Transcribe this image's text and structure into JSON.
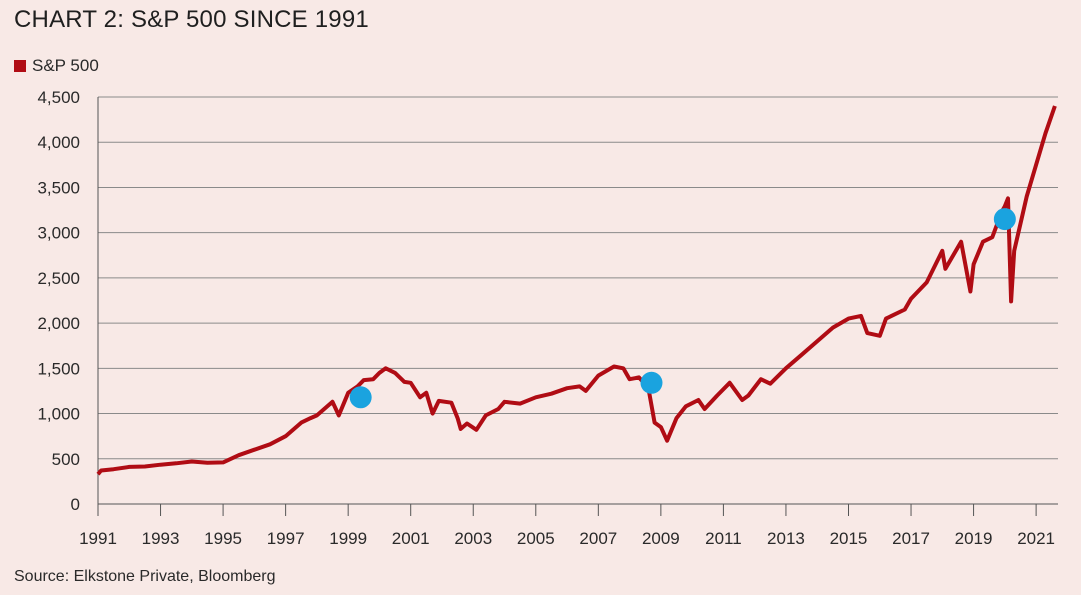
{
  "chart_data": {
    "type": "line",
    "title": "CHART 2: S&P 500 SINCE 1991",
    "legend": [
      {
        "label": "S&P 500",
        "color": "#b00c14"
      }
    ],
    "source": "Source: Elkstone Private, Bloomberg",
    "ylim": [
      0,
      4500
    ],
    "xlim": [
      1991,
      2021.7
    ],
    "y_ticks": [
      {
        "value": 0,
        "label": "0"
      },
      {
        "value": 500,
        "label": "500"
      },
      {
        "value": 1000,
        "label": "1,000"
      },
      {
        "value": 1500,
        "label": "1,500"
      },
      {
        "value": 2000,
        "label": "2,000"
      },
      {
        "value": 2500,
        "label": "2,500"
      },
      {
        "value": 3000,
        "label": "3,000"
      },
      {
        "value": 3500,
        "label": "3,500"
      },
      {
        "value": 4000,
        "label": "4,000"
      },
      {
        "value": 4500,
        "label": "4,500"
      }
    ],
    "x_ticks": [
      {
        "value": 1991,
        "label": "1991"
      },
      {
        "value": 1993,
        "label": "1993"
      },
      {
        "value": 1995,
        "label": "1995"
      },
      {
        "value": 1997,
        "label": "1997"
      },
      {
        "value": 1999,
        "label": "1999"
      },
      {
        "value": 2001,
        "label": "2001"
      },
      {
        "value": 2003,
        "label": "2003"
      },
      {
        "value": 2005,
        "label": "2005"
      },
      {
        "value": 2007,
        "label": "2007"
      },
      {
        "value": 2009,
        "label": "2009"
      },
      {
        "value": 2011,
        "label": "2011"
      },
      {
        "value": 2013,
        "label": "2013"
      },
      {
        "value": 2015,
        "label": "2015"
      },
      {
        "value": 2017,
        "label": "2017"
      },
      {
        "value": 2019,
        "label": "2019"
      },
      {
        "value": 2021,
        "label": "2021"
      }
    ],
    "series": [
      {
        "name": "S&P 500",
        "color": "#b00c14",
        "points": [
          [
            1991.0,
            330
          ],
          [
            1991.1,
            370
          ],
          [
            1991.5,
            385
          ],
          [
            1992.0,
            410
          ],
          [
            1992.5,
            415
          ],
          [
            1993.0,
            435
          ],
          [
            1993.5,
            450
          ],
          [
            1994.0,
            470
          ],
          [
            1994.5,
            455
          ],
          [
            1995.0,
            460
          ],
          [
            1995.5,
            540
          ],
          [
            1996.0,
            600
          ],
          [
            1996.5,
            660
          ],
          [
            1997.0,
            750
          ],
          [
            1997.5,
            900
          ],
          [
            1997.8,
            950
          ],
          [
            1998.0,
            980
          ],
          [
            1998.5,
            1130
          ],
          [
            1998.7,
            980
          ],
          [
            1999.0,
            1230
          ],
          [
            1999.3,
            1300
          ],
          [
            1999.5,
            1370
          ],
          [
            1999.8,
            1380
          ],
          [
            2000.0,
            1450
          ],
          [
            2000.2,
            1500
          ],
          [
            2000.5,
            1450
          ],
          [
            2000.8,
            1350
          ],
          [
            2001.0,
            1340
          ],
          [
            2001.3,
            1180
          ],
          [
            2001.5,
            1230
          ],
          [
            2001.7,
            1000
          ],
          [
            2001.9,
            1140
          ],
          [
            2002.3,
            1120
          ],
          [
            2002.5,
            950
          ],
          [
            2002.6,
            830
          ],
          [
            2002.8,
            890
          ],
          [
            2003.1,
            820
          ],
          [
            2003.4,
            980
          ],
          [
            2003.8,
            1050
          ],
          [
            2004.0,
            1130
          ],
          [
            2004.5,
            1110
          ],
          [
            2005.0,
            1180
          ],
          [
            2005.5,
            1220
          ],
          [
            2006.0,
            1280
          ],
          [
            2006.4,
            1300
          ],
          [
            2006.6,
            1250
          ],
          [
            2007.0,
            1420
          ],
          [
            2007.5,
            1520
          ],
          [
            2007.8,
            1500
          ],
          [
            2008.0,
            1380
          ],
          [
            2008.3,
            1400
          ],
          [
            2008.6,
            1280
          ],
          [
            2008.8,
            900
          ],
          [
            2009.0,
            850
          ],
          [
            2009.2,
            700
          ],
          [
            2009.5,
            950
          ],
          [
            2009.8,
            1080
          ],
          [
            2010.2,
            1150
          ],
          [
            2010.4,
            1050
          ],
          [
            2010.8,
            1200
          ],
          [
            2011.2,
            1340
          ],
          [
            2011.6,
            1150
          ],
          [
            2011.8,
            1200
          ],
          [
            2012.2,
            1380
          ],
          [
            2012.5,
            1330
          ],
          [
            2013.0,
            1500
          ],
          [
            2013.5,
            1650
          ],
          [
            2014.0,
            1800
          ],
          [
            2014.5,
            1950
          ],
          [
            2015.0,
            2050
          ],
          [
            2015.4,
            2080
          ],
          [
            2015.6,
            1890
          ],
          [
            2016.0,
            1860
          ],
          [
            2016.2,
            2050
          ],
          [
            2016.8,
            2150
          ],
          [
            2017.0,
            2270
          ],
          [
            2017.5,
            2450
          ],
          [
            2018.0,
            2800
          ],
          [
            2018.1,
            2600
          ],
          [
            2018.6,
            2900
          ],
          [
            2018.9,
            2350
          ],
          [
            2019.0,
            2650
          ],
          [
            2019.3,
            2900
          ],
          [
            2019.6,
            2950
          ],
          [
            2019.9,
            3230
          ],
          [
            2020.0,
            3290
          ],
          [
            2020.1,
            3380
          ],
          [
            2020.2,
            2240
          ],
          [
            2020.3,
            2800
          ],
          [
            2020.5,
            3100
          ],
          [
            2020.7,
            3400
          ],
          [
            2021.0,
            3750
          ],
          [
            2021.3,
            4100
          ],
          [
            2021.6,
            4400
          ]
        ]
      }
    ],
    "annotations": [
      {
        "type": "marker",
        "x": 1999.4,
        "y": 1180,
        "color": "#1aa3df"
      },
      {
        "type": "marker",
        "x": 2008.7,
        "y": 1340,
        "color": "#1aa3df"
      },
      {
        "type": "marker",
        "x": 2020.0,
        "y": 3150,
        "color": "#1aa3df"
      }
    ]
  }
}
